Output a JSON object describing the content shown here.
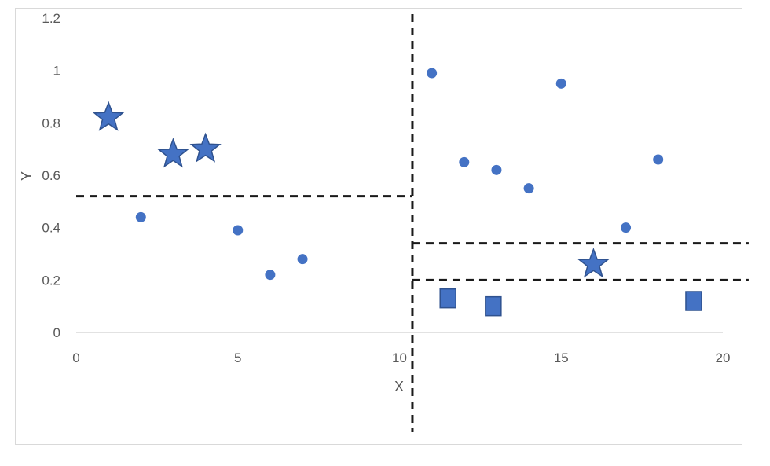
{
  "chart_data": {
    "type": "scatter",
    "xlabel": "X",
    "ylabel": "Y",
    "xlim": [
      0,
      20
    ],
    "ylim": [
      0,
      1.2
    ],
    "x_ticks": [
      "0",
      "5",
      "10",
      "15",
      "20"
    ],
    "y_ticks": [
      "0",
      "0.2",
      "0.4",
      "0.6",
      "0.8",
      "1",
      "1.2"
    ],
    "grid": false,
    "legend": "none",
    "series": [
      {
        "marker": "circle",
        "color": "#4472c4",
        "points": [
          {
            "x": 2,
            "y": 0.44
          },
          {
            "x": 5,
            "y": 0.39
          },
          {
            "x": 6,
            "y": 0.22
          },
          {
            "x": 7,
            "y": 0.28
          },
          {
            "x": 11,
            "y": 0.99
          },
          {
            "x": 12,
            "y": 0.65
          },
          {
            "x": 13,
            "y": 0.62
          },
          {
            "x": 14,
            "y": 0.55
          },
          {
            "x": 15,
            "y": 0.95
          },
          {
            "x": 17,
            "y": 0.4
          },
          {
            "x": 18,
            "y": 0.66
          }
        ]
      },
      {
        "marker": "star",
        "color": "#4472c4",
        "points": [
          {
            "x": 1,
            "y": 0.82
          },
          {
            "x": 3,
            "y": 0.68
          },
          {
            "x": 4,
            "y": 0.7
          },
          {
            "x": 16,
            "y": 0.26
          }
        ]
      },
      {
        "marker": "rectangle",
        "color": "#4472c4",
        "points": [
          {
            "x": 11.5,
            "y": 0.13
          },
          {
            "x": 12.9,
            "y": 0.1
          },
          {
            "x": 19.1,
            "y": 0.12
          }
        ]
      }
    ],
    "dividers": [
      {
        "orientation": "vertical",
        "x": 10.4
      },
      {
        "orientation": "horizontal",
        "x_from": 0,
        "x_to": 10.4,
        "y": 0.52
      },
      {
        "orientation": "horizontal",
        "x_from": 10.4,
        "x_to": 20.8,
        "y": 0.34
      },
      {
        "orientation": "horizontal",
        "x_from": 10.4,
        "x_to": 20.8,
        "y": 0.2
      }
    ]
  }
}
